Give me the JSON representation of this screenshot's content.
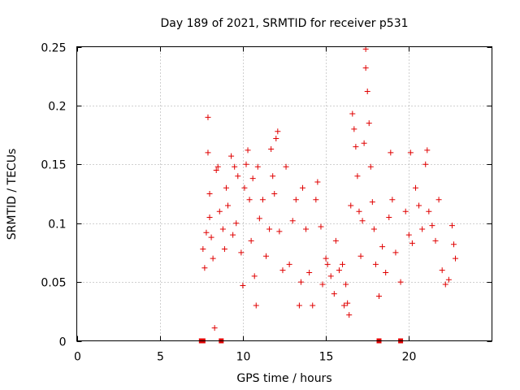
{
  "chart_data": {
    "type": "scatter",
    "title": "Day 189 of 2021, SRMTID for receiver p531",
    "xlabel": "GPS time / hours",
    "ylabel": "SRMTID / TECUs",
    "xlim": [
      0,
      25
    ],
    "ylim": [
      0,
      0.25
    ],
    "xticks": [
      0,
      5,
      10,
      15,
      20
    ],
    "xtick_labels": [
      "0",
      "5",
      "10",
      "15",
      "20"
    ],
    "yticks": [
      0,
      0.05,
      0.1,
      0.15,
      0.2,
      0.25
    ],
    "ytick_labels": [
      "0",
      "0.05",
      "0.1",
      "0.15",
      "0.2",
      "0.25"
    ],
    "grid": true,
    "marker_color": "#e00000",
    "series": [
      {
        "name": "SRMTID",
        "marker": "plus",
        "points": [
          [
            7.6,
            0.078
          ],
          [
            7.7,
            0.062
          ],
          [
            7.8,
            0.092
          ],
          [
            7.9,
            0.19
          ],
          [
            7.9,
            0.16
          ],
          [
            8.0,
            0.125
          ],
          [
            8.0,
            0.105
          ],
          [
            8.1,
            0.088
          ],
          [
            8.2,
            0.07
          ],
          [
            8.3,
            0.011
          ],
          [
            8.4,
            0.145
          ],
          [
            8.5,
            0.148
          ],
          [
            8.6,
            0.11
          ],
          [
            8.8,
            0.095
          ],
          [
            8.9,
            0.078
          ],
          [
            9.0,
            0.13
          ],
          [
            9.1,
            0.115
          ],
          [
            9.3,
            0.157
          ],
          [
            9.4,
            0.09
          ],
          [
            9.5,
            0.148
          ],
          [
            9.6,
            0.1
          ],
          [
            9.7,
            0.14
          ],
          [
            9.9,
            0.075
          ],
          [
            10.0,
            0.047
          ],
          [
            10.1,
            0.13
          ],
          [
            10.2,
            0.15
          ],
          [
            10.3,
            0.162
          ],
          [
            10.4,
            0.12
          ],
          [
            10.5,
            0.085
          ],
          [
            10.6,
            0.138
          ],
          [
            10.7,
            0.055
          ],
          [
            10.8,
            0.03
          ],
          [
            10.9,
            0.148
          ],
          [
            11.0,
            0.104
          ],
          [
            11.2,
            0.12
          ],
          [
            11.4,
            0.072
          ],
          [
            11.6,
            0.095
          ],
          [
            11.7,
            0.163
          ],
          [
            11.8,
            0.14
          ],
          [
            11.9,
            0.125
          ],
          [
            12.0,
            0.172
          ],
          [
            12.1,
            0.178
          ],
          [
            12.2,
            0.093
          ],
          [
            12.4,
            0.06
          ],
          [
            12.6,
            0.148
          ],
          [
            12.8,
            0.065
          ],
          [
            13.0,
            0.102
          ],
          [
            13.2,
            0.12
          ],
          [
            13.4,
            0.03
          ],
          [
            13.5,
            0.05
          ],
          [
            13.6,
            0.13
          ],
          [
            13.8,
            0.095
          ],
          [
            14.0,
            0.058
          ],
          [
            14.2,
            0.03
          ],
          [
            14.4,
            0.12
          ],
          [
            14.5,
            0.135
          ],
          [
            14.7,
            0.097
          ],
          [
            14.8,
            0.048
          ],
          [
            15.0,
            0.07
          ],
          [
            15.1,
            0.065
          ],
          [
            15.3,
            0.055
          ],
          [
            15.5,
            0.04
          ],
          [
            15.6,
            0.085
          ],
          [
            15.8,
            0.06
          ],
          [
            16.0,
            0.065
          ],
          [
            16.1,
            0.03
          ],
          [
            16.2,
            0.048
          ],
          [
            16.3,
            0.032
          ],
          [
            16.4,
            0.022
          ],
          [
            16.5,
            0.115
          ],
          [
            16.6,
            0.193
          ],
          [
            16.7,
            0.18
          ],
          [
            16.8,
            0.165
          ],
          [
            16.9,
            0.14
          ],
          [
            17.0,
            0.11
          ],
          [
            17.1,
            0.072
          ],
          [
            17.2,
            0.102
          ],
          [
            17.3,
            0.168
          ],
          [
            17.4,
            0.248
          ],
          [
            17.4,
            0.232
          ],
          [
            17.5,
            0.212
          ],
          [
            17.6,
            0.185
          ],
          [
            17.7,
            0.148
          ],
          [
            17.8,
            0.118
          ],
          [
            17.9,
            0.095
          ],
          [
            18.0,
            0.065
          ],
          [
            18.2,
            0.038
          ],
          [
            18.4,
            0.08
          ],
          [
            18.6,
            0.058
          ],
          [
            18.8,
            0.105
          ],
          [
            18.9,
            0.16
          ],
          [
            19.0,
            0.12
          ],
          [
            19.2,
            0.075
          ],
          [
            19.5,
            0.05
          ],
          [
            19.8,
            0.11
          ],
          [
            20.0,
            0.09
          ],
          [
            20.1,
            0.16
          ],
          [
            20.2,
            0.083
          ],
          [
            20.4,
            0.13
          ],
          [
            20.6,
            0.115
          ],
          [
            20.8,
            0.095
          ],
          [
            21.0,
            0.15
          ],
          [
            21.1,
            0.162
          ],
          [
            21.2,
            0.11
          ],
          [
            21.4,
            0.098
          ],
          [
            21.6,
            0.085
          ],
          [
            21.8,
            0.12
          ],
          [
            22.0,
            0.06
          ],
          [
            22.2,
            0.048
          ],
          [
            22.4,
            0.052
          ],
          [
            22.6,
            0.098
          ],
          [
            22.7,
            0.082
          ],
          [
            22.8,
            0.07
          ]
        ]
      },
      {
        "name": "zero markers",
        "marker": "square",
        "points": [
          [
            7.5,
            0
          ],
          [
            7.6,
            0
          ],
          [
            8.7,
            0
          ],
          [
            18.2,
            0
          ],
          [
            19.5,
            0
          ]
        ]
      }
    ]
  }
}
